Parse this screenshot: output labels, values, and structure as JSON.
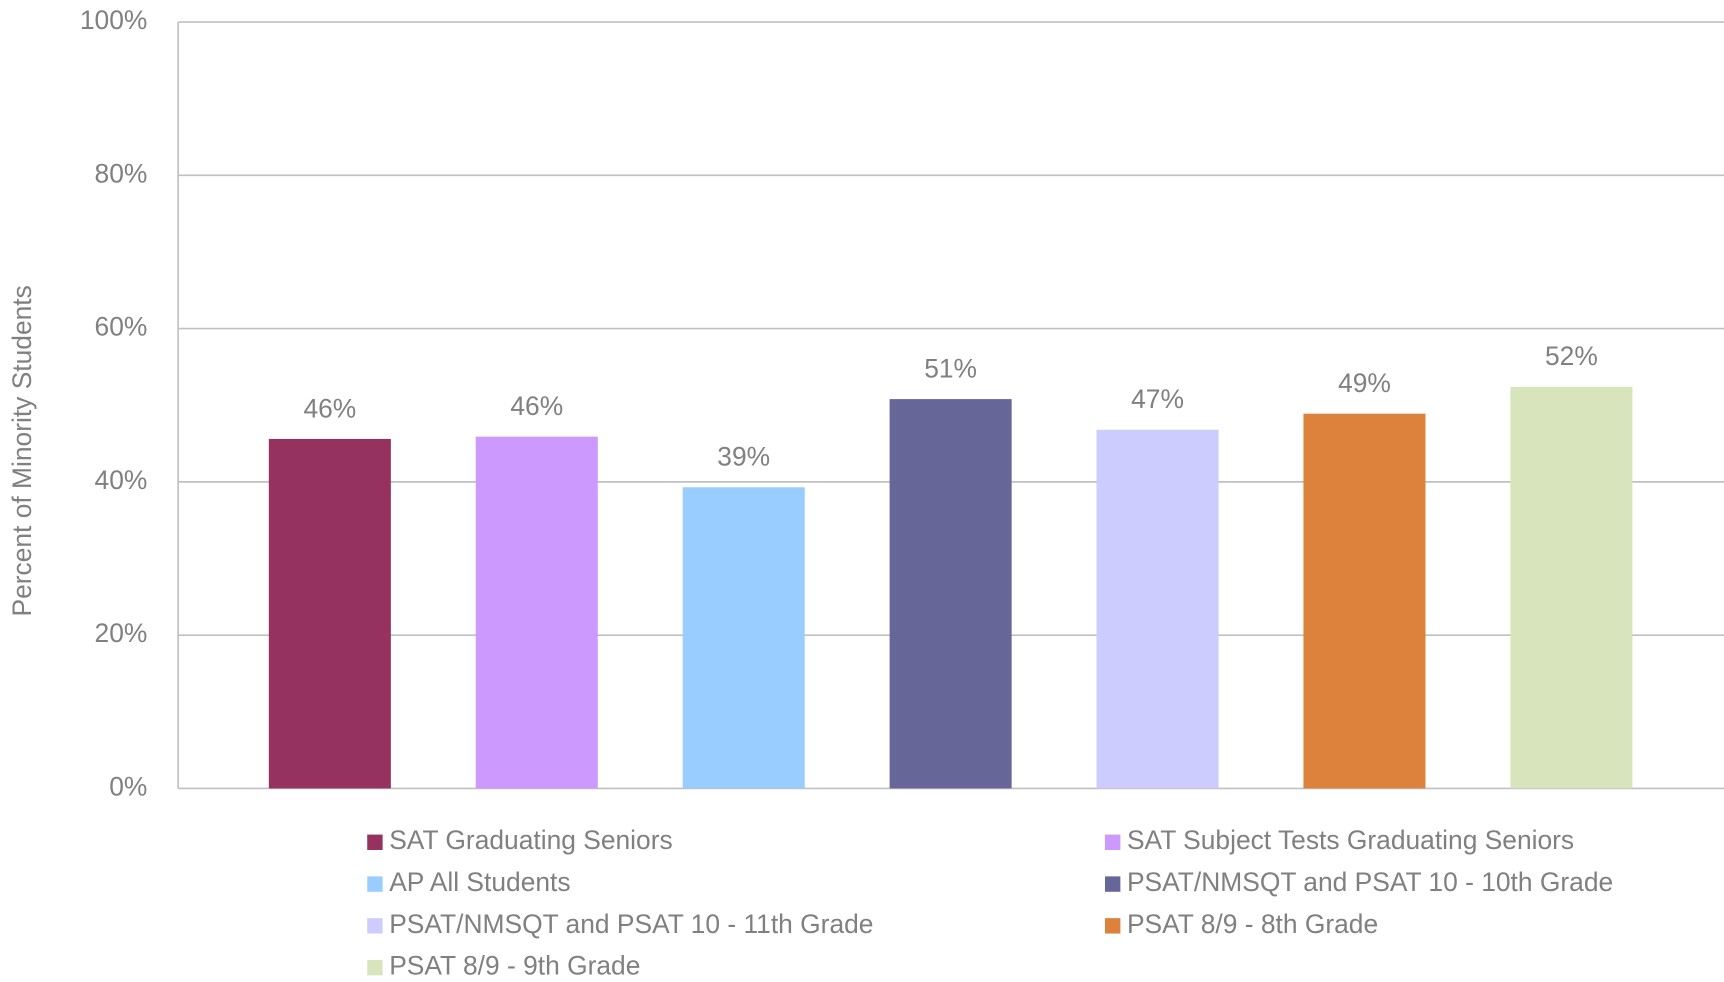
{
  "chart_data": {
    "type": "bar",
    "y_label": "Percent of Minority Students",
    "ylim": [
      0,
      100
    ],
    "yticks": [
      {
        "value": 0,
        "label": "0%"
      },
      {
        "value": 20,
        "label": "20%"
      },
      {
        "value": 40,
        "label": "40%"
      },
      {
        "value": 60,
        "label": "60%"
      },
      {
        "value": 80,
        "label": "80%"
      },
      {
        "value": 100,
        "label": "100%"
      }
    ],
    "grid": true,
    "series": [
      {
        "name": "SAT Graduating Seniors",
        "color": "#963260",
        "values": [
          45.6
        ],
        "value_labels": [
          "46%"
        ]
      },
      {
        "name": "SAT Subject Tests Graduating Seniors",
        "color": "#cc99ff",
        "values": [
          45.9
        ],
        "value_labels": [
          "46%"
        ]
      },
      {
        "name": "AP All Students",
        "color": "#99ccff",
        "values": [
          39.3
        ],
        "value_labels": [
          "39%"
        ]
      },
      {
        "name": "PSAT/NMSQT and PSAT 10 - 10th Grade",
        "color": "#666699",
        "values": [
          50.8
        ],
        "value_labels": [
          "51%"
        ]
      },
      {
        "name": "PSAT/NMSQT and PSAT 10 - 11th Grade",
        "color": "#ccccff",
        "values": [
          46.8
        ],
        "value_labels": [
          "47%"
        ]
      },
      {
        "name": "PSAT 8/9 - 8th Grade",
        "color": "#dc823c",
        "values": [
          48.9
        ],
        "value_labels": [
          "49%"
        ]
      },
      {
        "name": "PSAT 8/9 - 9th Grade",
        "color": "#d8e4bc",
        "values": [
          52.4
        ],
        "value_labels": [
          "52%"
        ]
      }
    ]
  }
}
